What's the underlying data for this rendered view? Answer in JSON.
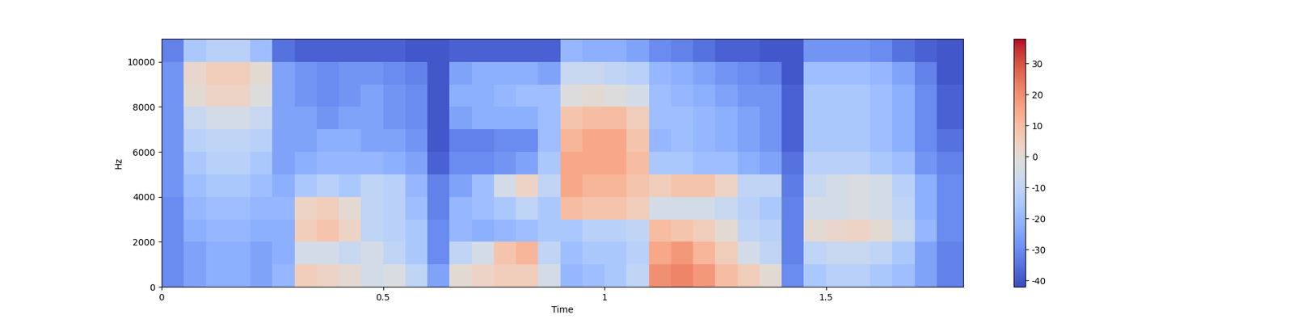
{
  "chart_data": {
    "type": "heatmap",
    "x_label": "Time",
    "y_label": "Hz",
    "color": "coolwarm",
    "xlim": [
      0,
      1.81
    ],
    "xticks": [
      0,
      0.5,
      1,
      1.5
    ],
    "ylim": [
      0,
      11025
    ],
    "yticks": [
      0,
      2000,
      4000,
      6000,
      8000,
      10000
    ],
    "x_edges": [
      0,
      0.05,
      0.1,
      0.15,
      0.2,
      0.25,
      0.3,
      0.35,
      0.4,
      0.45,
      0.5,
      0.55,
      0.6,
      0.65,
      0.7,
      0.75,
      0.8,
      0.85,
      0.9,
      0.95,
      1.0,
      1.05,
      1.1,
      1.15,
      1.2,
      1.25,
      1.3,
      1.35,
      1.4,
      1.45,
      1.5,
      1.55,
      1.6,
      1.65,
      1.7,
      1.75,
      1.81
    ],
    "y_edges": [
      0,
      1000,
      2000,
      3000,
      4000,
      5000,
      6000,
      7000,
      8000,
      9000,
      10000,
      11025
    ],
    "cells": [
      [
        -30,
        -25,
        -22,
        -22,
        -25,
        -20,
        5,
        3,
        0,
        -5,
        -3,
        -10,
        -25,
        0,
        3,
        5,
        5,
        -5,
        -20,
        -18,
        -15,
        -10,
        20,
        22,
        18,
        10,
        5,
        0,
        -30,
        -15,
        -12,
        -12,
        -15,
        -18,
        -25,
        -32
      ],
      [
        -30,
        -25,
        -22,
        -22,
        -25,
        -22,
        -5,
        -5,
        -8,
        -5,
        -10,
        -15,
        -30,
        -10,
        -5,
        8,
        12,
        -10,
        -18,
        -15,
        -15,
        -12,
        15,
        18,
        12,
        5,
        -5,
        -10,
        -32,
        -10,
        -8,
        -8,
        -10,
        -15,
        -25,
        -32
      ],
      [
        -30,
        -22,
        -20,
        -20,
        -22,
        -22,
        5,
        8,
        3,
        -10,
        -12,
        -15,
        -30,
        -20,
        -22,
        -20,
        -18,
        -15,
        -15,
        -12,
        -12,
        -10,
        10,
        8,
        5,
        0,
        -10,
        -12,
        -32,
        0,
        2,
        3,
        0,
        -8,
        -20,
        -30
      ],
      [
        -30,
        -20,
        -18,
        -18,
        -20,
        -20,
        3,
        5,
        0,
        -10,
        -12,
        -18,
        -32,
        -20,
        -18,
        -15,
        -10,
        -15,
        10,
        8,
        8,
        5,
        -5,
        -5,
        -5,
        -8,
        -12,
        -15,
        -32,
        -5,
        -5,
        -3,
        -5,
        -10,
        -22,
        -30
      ],
      [
        -28,
        -18,
        -15,
        -15,
        -18,
        -22,
        -15,
        -12,
        -15,
        -10,
        -12,
        -20,
        -32,
        -25,
        -18,
        -5,
        3,
        -10,
        15,
        12,
        12,
        8,
        5,
        8,
        8,
        3,
        -10,
        -10,
        -33,
        -8,
        -5,
        -3,
        -5,
        -12,
        -22,
        -30
      ],
      [
        -28,
        -15,
        -12,
        -12,
        -15,
        -25,
        -22,
        -20,
        -20,
        -20,
        -22,
        -25,
        -38,
        -30,
        -30,
        -28,
        -25,
        -15,
        15,
        15,
        15,
        10,
        -15,
        -15,
        -18,
        -18,
        -22,
        -25,
        -35,
        -12,
        -12,
        -12,
        -15,
        -18,
        -28,
        -32
      ],
      [
        -28,
        -12,
        -10,
        -10,
        -12,
        -25,
        -25,
        -22,
        -22,
        -25,
        -25,
        -28,
        -40,
        -32,
        -32,
        -30,
        -30,
        -18,
        12,
        15,
        15,
        8,
        -20,
        -18,
        -20,
        -22,
        -25,
        -28,
        -38,
        -15,
        -15,
        -15,
        -18,
        -22,
        -30,
        -35
      ],
      [
        -28,
        -8,
        -5,
        -5,
        -8,
        -25,
        -25,
        -28,
        -25,
        -25,
        -28,
        -30,
        -40,
        -25,
        -22,
        -22,
        -22,
        -18,
        8,
        10,
        10,
        5,
        -18,
        -18,
        -20,
        -22,
        -25,
        -28,
        -38,
        -15,
        -15,
        -15,
        -18,
        -22,
        -30,
        -38
      ],
      [
        -28,
        0,
        3,
        3,
        -2,
        -25,
        -28,
        -30,
        -28,
        -25,
        -28,
        -30,
        -40,
        -22,
        -22,
        -20,
        -18,
        -18,
        -2,
        0,
        -2,
        -5,
        -18,
        -20,
        -22,
        -25,
        -28,
        -28,
        -38,
        -15,
        -15,
        -15,
        -18,
        -22,
        -30,
        -38
      ],
      [
        -28,
        2,
        5,
        5,
        0,
        -25,
        -28,
        -30,
        -28,
        -28,
        -30,
        -32,
        -40,
        -25,
        -22,
        -22,
        -22,
        -25,
        -8,
        -8,
        -10,
        -12,
        -20,
        -22,
        -25,
        -28,
        -30,
        -32,
        -40,
        -18,
        -18,
        -18,
        -20,
        -25,
        -32,
        -40
      ],
      [
        -32,
        -15,
        -12,
        -12,
        -18,
        -35,
        -38,
        -38,
        -38,
        -38,
        -38,
        -40,
        -40,
        -38,
        -38,
        -38,
        -38,
        -38,
        -20,
        -22,
        -22,
        -25,
        -30,
        -32,
        -35,
        -38,
        -38,
        -40,
        -40,
        -28,
        -28,
        -28,
        -30,
        -35,
        -38,
        -40
      ]
    ],
    "color_range": [
      -42,
      38
    ],
    "color_ticks": [
      -40,
      -30,
      -20,
      -10,
      0,
      10,
      20,
      30
    ]
  }
}
